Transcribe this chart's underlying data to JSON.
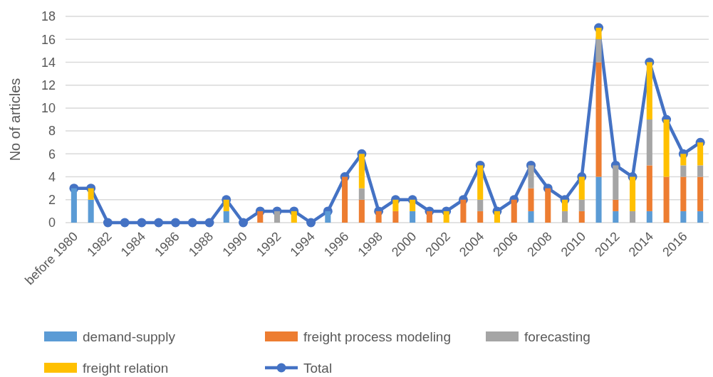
{
  "chart_data": {
    "type": "bar",
    "stacked": true,
    "ylabel": "No of articles",
    "categories": [
      "before 1980",
      null,
      "1982",
      null,
      "1984",
      null,
      "1986",
      null,
      "1988",
      null,
      "1990",
      null,
      "1992",
      null,
      "1994",
      null,
      "1996",
      null,
      "1998",
      null,
      "2000",
      null,
      "2002",
      null,
      "2004",
      null,
      "2006",
      null,
      "2008",
      null,
      "2010",
      null,
      "2012",
      null,
      "2014",
      null,
      "2016",
      null
    ],
    "series": [
      {
        "name": "demand-supply",
        "color": "#5b9bd5",
        "values": [
          3,
          2,
          0,
          0,
          0,
          0,
          0,
          0,
          0,
          1,
          0,
          0,
          0,
          0,
          0,
          1,
          0,
          0,
          0,
          0,
          1,
          0,
          0,
          0,
          0,
          0,
          0,
          1,
          0,
          0,
          0,
          4,
          1,
          0,
          1,
          0,
          1,
          1
        ]
      },
      {
        "name": "freight process modeling",
        "color": "#ed7d31",
        "values": [
          0,
          0,
          0,
          0,
          0,
          0,
          0,
          0,
          0,
          0,
          0,
          1,
          0,
          0,
          0,
          0,
          4,
          2,
          1,
          1,
          0,
          1,
          0,
          2,
          1,
          0,
          2,
          2,
          3,
          0,
          1,
          10,
          1,
          0,
          4,
          4,
          3,
          3
        ]
      },
      {
        "name": "forecasting",
        "color": "#a5a5a5",
        "values": [
          0,
          0,
          0,
          0,
          0,
          0,
          0,
          0,
          0,
          0,
          0,
          0,
          1,
          0,
          0,
          0,
          0,
          1,
          0,
          0,
          0,
          0,
          0,
          0,
          1,
          0,
          0,
          2,
          0,
          1,
          1,
          2,
          3,
          1,
          4,
          0,
          1,
          1
        ]
      },
      {
        "name": "freight relation",
        "color": "#ffc000",
        "values": [
          0,
          1,
          0,
          0,
          0,
          0,
          0,
          0,
          0,
          1,
          0,
          0,
          0,
          1,
          0,
          0,
          0,
          3,
          0,
          1,
          1,
          0,
          1,
          0,
          3,
          1,
          0,
          0,
          0,
          1,
          2,
          1,
          0,
          3,
          5,
          5,
          1,
          2
        ]
      },
      {
        "name": "Total",
        "type": "line",
        "color": "#4472c4",
        "values": [
          3,
          3,
          0,
          0,
          0,
          0,
          0,
          0,
          0,
          2,
          0,
          1,
          1,
          1,
          0,
          1,
          4,
          6,
          1,
          2,
          2,
          1,
          1,
          2,
          5,
          1,
          2,
          5,
          3,
          2,
          4,
          17,
          5,
          4,
          14,
          9,
          6,
          7
        ]
      }
    ],
    "ylim": [
      0,
      18
    ],
    "yticks": [
      0,
      2,
      4,
      6,
      8,
      10,
      12,
      14,
      16,
      18
    ],
    "grid": "y",
    "legend": "bottom",
    "marker": "circle"
  }
}
